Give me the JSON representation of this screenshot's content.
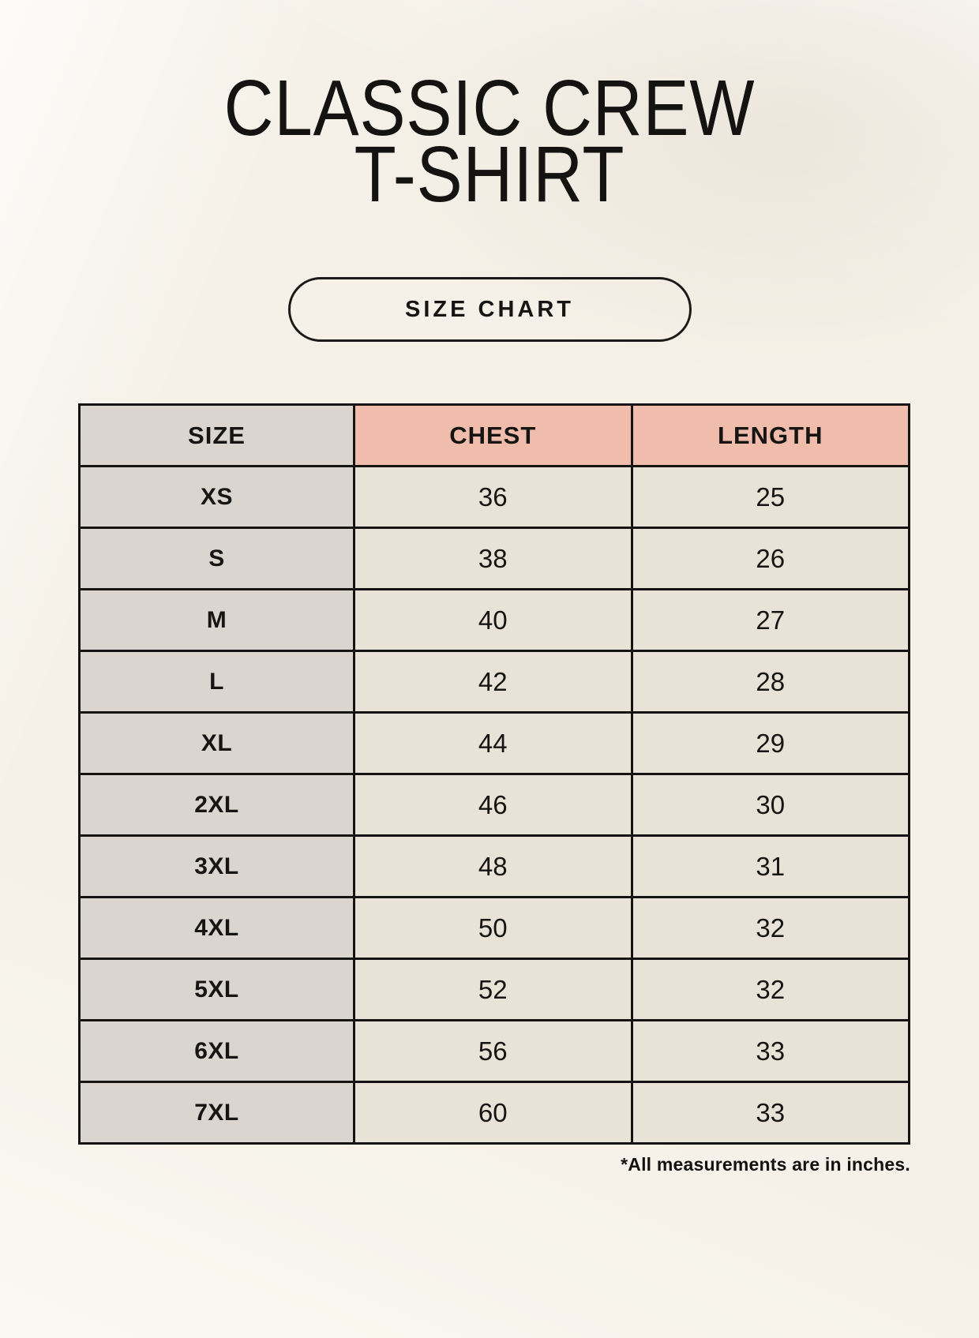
{
  "header": {
    "title_line1": "CLASSIC CREW",
    "title_line2": "T-SHIRT",
    "button_label": "SIZE CHART"
  },
  "footer": {
    "note": "*All measurements are in inches."
  },
  "colors": {
    "background": "#f5f1e8",
    "header_accent_pink": "#f0bcab",
    "size_column_gray": "#dbd5d0",
    "value_cell_cream": "#e9e2d6",
    "table_border": "#151412",
    "text": "#161514"
  },
  "chart_data": {
    "type": "table",
    "title": "CLASSIC CREW T-SHIRT",
    "columns": [
      "SIZE",
      "CHEST",
      "LENGTH"
    ],
    "rows": [
      [
        "XS",
        "36",
        "25"
      ],
      [
        "S",
        "38",
        "26"
      ],
      [
        "M",
        "40",
        "27"
      ],
      [
        "L",
        "42",
        "28"
      ],
      [
        "XL",
        "44",
        "29"
      ],
      [
        "2XL",
        "46",
        "30"
      ],
      [
        "3XL",
        "48",
        "31"
      ],
      [
        "4XL",
        "50",
        "32"
      ],
      [
        "5XL",
        "52",
        "32"
      ],
      [
        "6XL",
        "56",
        "33"
      ],
      [
        "7XL",
        "60",
        "33"
      ]
    ],
    "note": "*All measurements are in inches.",
    "layout_hints": {
      "header_fill": "salmon for CHEST/LENGTH, gray for SIZE column",
      "grid": "black 3px borders, all cells"
    }
  }
}
